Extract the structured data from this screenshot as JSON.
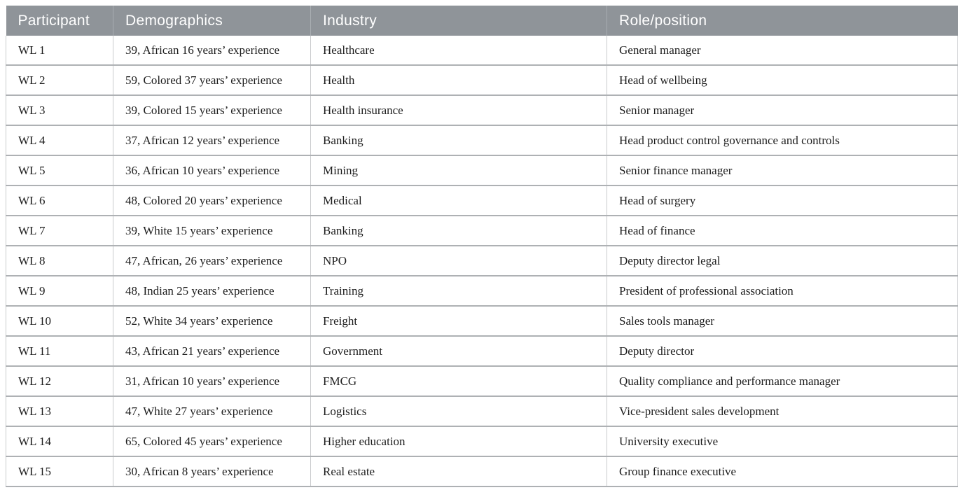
{
  "colors": {
    "header_background": "#8f9499",
    "header_text": "#ffffff",
    "row_border": "#aeb1b4",
    "column_border": "#c9cbcd",
    "body_text": "#1c1c1c",
    "page_background": "#ffffff"
  },
  "table": {
    "columns": [
      {
        "key": "participant",
        "label": "Participant"
      },
      {
        "key": "demographics",
        "label": "Demographics"
      },
      {
        "key": "industry",
        "label": "Industry"
      },
      {
        "key": "role",
        "label": "Role/position"
      }
    ],
    "rows": [
      {
        "participant": "WL 1",
        "demographics": "39, African 16 years’ experience",
        "industry": "Healthcare",
        "role": "General manager"
      },
      {
        "participant": "WL 2",
        "demographics": "59, Colored 37 years’ experience",
        "industry": "Health",
        "role": "Head of wellbeing"
      },
      {
        "participant": "WL 3",
        "demographics": "39, Colored 15 years’ experience",
        "industry": "Health insurance",
        "role": "Senior manager"
      },
      {
        "participant": "WL 4",
        "demographics": "37, African 12 years’ experience",
        "industry": "Banking",
        "role": "Head product control governance and controls"
      },
      {
        "participant": "WL 5",
        "demographics": "36, African 10 years’ experience",
        "industry": "Mining",
        "role": "Senior finance manager"
      },
      {
        "participant": "WL 6",
        "demographics": "48, Colored 20 years’ experience",
        "industry": "Medical",
        "role": "Head of surgery"
      },
      {
        "participant": "WL 7",
        "demographics": "39, White 15 years’ experience",
        "industry": "Banking",
        "role": "Head of finance"
      },
      {
        "participant": "WL 8",
        "demographics": "47, African, 26 years’ experience",
        "industry": "NPO",
        "role": "Deputy director legal"
      },
      {
        "participant": "WL 9",
        "demographics": "48, Indian 25 years’ experience",
        "industry": "Training",
        "role": "President of professional association"
      },
      {
        "participant": "WL 10",
        "demographics": "52, White 34 years’ experience",
        "industry": "Freight",
        "role": "Sales tools manager"
      },
      {
        "participant": "WL 11",
        "demographics": "43, African 21 years’ experience",
        "industry": "Government",
        "role": "Deputy director"
      },
      {
        "participant": "WL 12",
        "demographics": "31, African 10 years’ experience",
        "industry": "FMCG",
        "role": "Quality compliance and performance manager"
      },
      {
        "participant": "WL 13",
        "demographics": "47, White 27 years’ experience",
        "industry": "Logistics",
        "role": "Vice-president sales development"
      },
      {
        "participant": "WL 14",
        "demographics": "65, Colored 45 years’ experience",
        "industry": "Higher education",
        "role": "University executive"
      },
      {
        "participant": "WL 15",
        "demographics": "30, African 8 years’ experience",
        "industry": "Real estate",
        "role": "Group finance executive"
      }
    ]
  }
}
